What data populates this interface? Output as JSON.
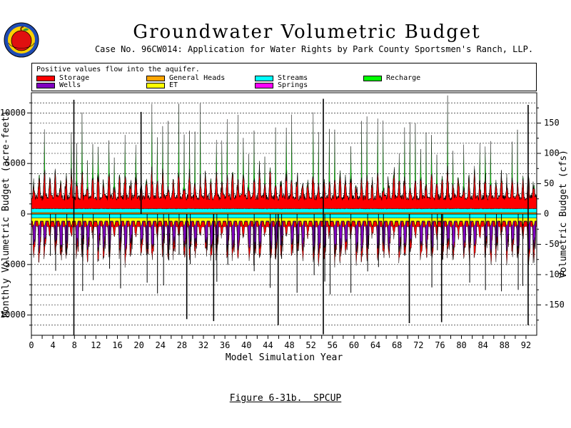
{
  "header": {
    "title": "Groundwater Volumetric Budget",
    "subtitle": "Case No. 96CW014: Application for Water Rights by Park County Sportsmen's Ranch, LLP."
  },
  "legend": {
    "heading": "Positive values flow into the aquifer.",
    "items": [
      {
        "label": "Storage",
        "color": "#ff0000"
      },
      {
        "label": "General Heads",
        "color": "#ffa500"
      },
      {
        "label": "Streams",
        "color": "#00ffff"
      },
      {
        "label": "Recharge",
        "color": "#00ff00"
      },
      {
        "label": "Wells",
        "color": "#8000c0"
      },
      {
        "label": "ET",
        "color": "#ffff00"
      },
      {
        "label": "Springs",
        "color": "#ff00ff"
      }
    ]
  },
  "logo": {
    "icon": "apple-logo-icon",
    "colors": [
      "#1e4bb4",
      "#ffd000",
      "#e01010",
      "#30a030"
    ]
  },
  "caption": "Figure 6-31b.  SPCUP",
  "chart_data": {
    "type": "area",
    "title": "Groundwater Volumetric Budget",
    "xlabel": "Model Simulation Year",
    "ylabel": "Monthly Volumetric Budget (acre-feet)",
    "y2label": "Volumetric Budget (cfs)",
    "xlim": [
      0,
      94
    ],
    "ylim": [
      -12000,
      12000
    ],
    "y2lim": [
      -200,
      200
    ],
    "xticks": [
      0,
      2,
      4,
      6,
      8,
      10,
      12,
      14,
      16,
      18,
      20,
      22,
      24,
      26,
      28,
      30,
      32,
      34,
      36,
      38,
      40,
      42,
      44,
      46,
      48,
      50,
      52,
      54,
      56,
      58,
      60,
      62,
      64,
      66,
      68,
      70,
      72,
      74,
      76,
      78,
      80,
      82,
      84,
      86,
      88,
      90,
      92
    ],
    "xtick_labels": [
      "0",
      "4",
      "8",
      "12",
      "16",
      "20",
      "24",
      "28",
      "32",
      "36",
      "40",
      "44",
      "48",
      "52",
      "56",
      "60",
      "64",
      "68",
      "72",
      "76",
      "80",
      "84",
      "88",
      "92"
    ],
    "xtick_label_values": [
      0,
      4,
      8,
      12,
      16,
      20,
      24,
      28,
      32,
      36,
      40,
      44,
      48,
      52,
      56,
      60,
      64,
      68,
      72,
      76,
      80,
      84,
      88,
      92
    ],
    "yticks": [
      -10000,
      -5000,
      0,
      5000,
      10000
    ],
    "y2ticks": [
      -150,
      -100,
      -50,
      0,
      50,
      100,
      150
    ],
    "grid": "horizontal",
    "series_estimated": [
      {
        "name": "Storage",
        "sign": "both",
        "typical_in": 2500,
        "typical_out": -1500
      },
      {
        "name": "Recharge",
        "sign": "positive",
        "typical": 2000,
        "peak": 10000
      },
      {
        "name": "Streams",
        "sign": "both",
        "typical": 400
      },
      {
        "name": "ET",
        "sign": "negative",
        "typical": -600
      },
      {
        "name": "Wells",
        "sign": "negative",
        "typical": -2500
      },
      {
        "name": "General Heads",
        "sign": "both",
        "typical": 200
      },
      {
        "name": "Springs",
        "sign": "negative",
        "typical": -50
      }
    ],
    "total_spikes": [
      {
        "x": 7.9,
        "y": 11300
      },
      {
        "x": 7.9,
        "y": -12000
      },
      {
        "x": 54.3,
        "y": 11400
      },
      {
        "x": 54.3,
        "y": -11900
      },
      {
        "x": 33.9,
        "y": -10600
      },
      {
        "x": 45.9,
        "y": -11000
      },
      {
        "x": 92.4,
        "y": -11000
      },
      {
        "x": 92.4,
        "y": 10800
      },
      {
        "x": 28.9,
        "y": -10400
      },
      {
        "x": 20.4,
        "y": 10100
      },
      {
        "x": 70.3,
        "y": -10800
      },
      {
        "x": 76.3,
        "y": -10700
      }
    ]
  }
}
